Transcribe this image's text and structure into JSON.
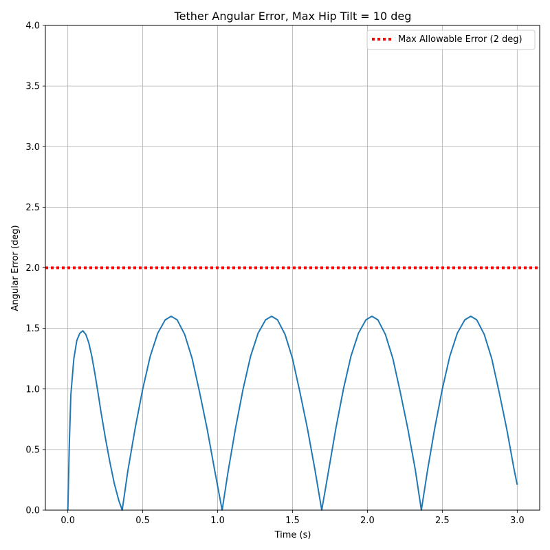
{
  "chart_data": {
    "type": "line",
    "title": "Tether Angular Error, Max Hip Tilt = 10 deg",
    "xlabel": "Time (s)",
    "ylabel": "Angular Error (deg)",
    "xlim": [
      -0.15,
      3.15
    ],
    "ylim": [
      0,
      4
    ],
    "xticks": [
      "0.0",
      "0.5",
      "1.0",
      "1.5",
      "2.0",
      "2.5",
      "3.0"
    ],
    "yticks": [
      "0.0",
      "0.5",
      "1.0",
      "1.5",
      "2.0",
      "2.5",
      "3.0",
      "3.5",
      "4.0"
    ],
    "grid": true,
    "legend_position": "top-right",
    "series": [
      {
        "name": "",
        "color": "#1f77b4",
        "style": "solid",
        "x": [
          0.0,
          0.01,
          0.02,
          0.04,
          0.06,
          0.08,
          0.1,
          0.12,
          0.14,
          0.16,
          0.18,
          0.2,
          0.22,
          0.25,
          0.28,
          0.31,
          0.34,
          0.363,
          0.4,
          0.45,
          0.5,
          0.55,
          0.6,
          0.65,
          0.69,
          0.73,
          0.78,
          0.83,
          0.88,
          0.93,
          0.98,
          1.03,
          1.07,
          1.12,
          1.17,
          1.22,
          1.27,
          1.32,
          1.36,
          1.4,
          1.45,
          1.5,
          1.55,
          1.6,
          1.65,
          1.695,
          1.74,
          1.79,
          1.84,
          1.89,
          1.94,
          1.99,
          2.03,
          2.07,
          2.12,
          2.17,
          2.22,
          2.27,
          2.32,
          2.36,
          2.4,
          2.45,
          2.5,
          2.55,
          2.6,
          2.65,
          2.69,
          2.73,
          2.78,
          2.83,
          2.88,
          2.93,
          2.98,
          3.0
        ],
        "y": [
          0.0,
          0.55,
          0.95,
          1.25,
          1.4,
          1.46,
          1.48,
          1.45,
          1.38,
          1.27,
          1.13,
          0.98,
          0.82,
          0.6,
          0.4,
          0.22,
          0.08,
          0.0,
          0.32,
          0.68,
          1.0,
          1.27,
          1.46,
          1.57,
          1.6,
          1.57,
          1.45,
          1.25,
          0.97,
          0.67,
          0.33,
          0.0,
          0.32,
          0.68,
          1.0,
          1.27,
          1.46,
          1.57,
          1.6,
          1.57,
          1.45,
          1.25,
          0.97,
          0.67,
          0.33,
          0.0,
          0.32,
          0.68,
          1.0,
          1.27,
          1.46,
          1.57,
          1.6,
          1.57,
          1.45,
          1.25,
          0.97,
          0.67,
          0.33,
          0.0,
          0.32,
          0.68,
          1.0,
          1.27,
          1.46,
          1.57,
          1.6,
          1.57,
          1.45,
          1.25,
          0.97,
          0.67,
          0.33,
          0.21
        ]
      },
      {
        "name": "Max Allowable Error (2 deg)",
        "color": "#ff0000",
        "style": "dotted",
        "x": [
          -0.15,
          3.15
        ],
        "y": [
          2.0,
          2.0
        ]
      }
    ]
  }
}
